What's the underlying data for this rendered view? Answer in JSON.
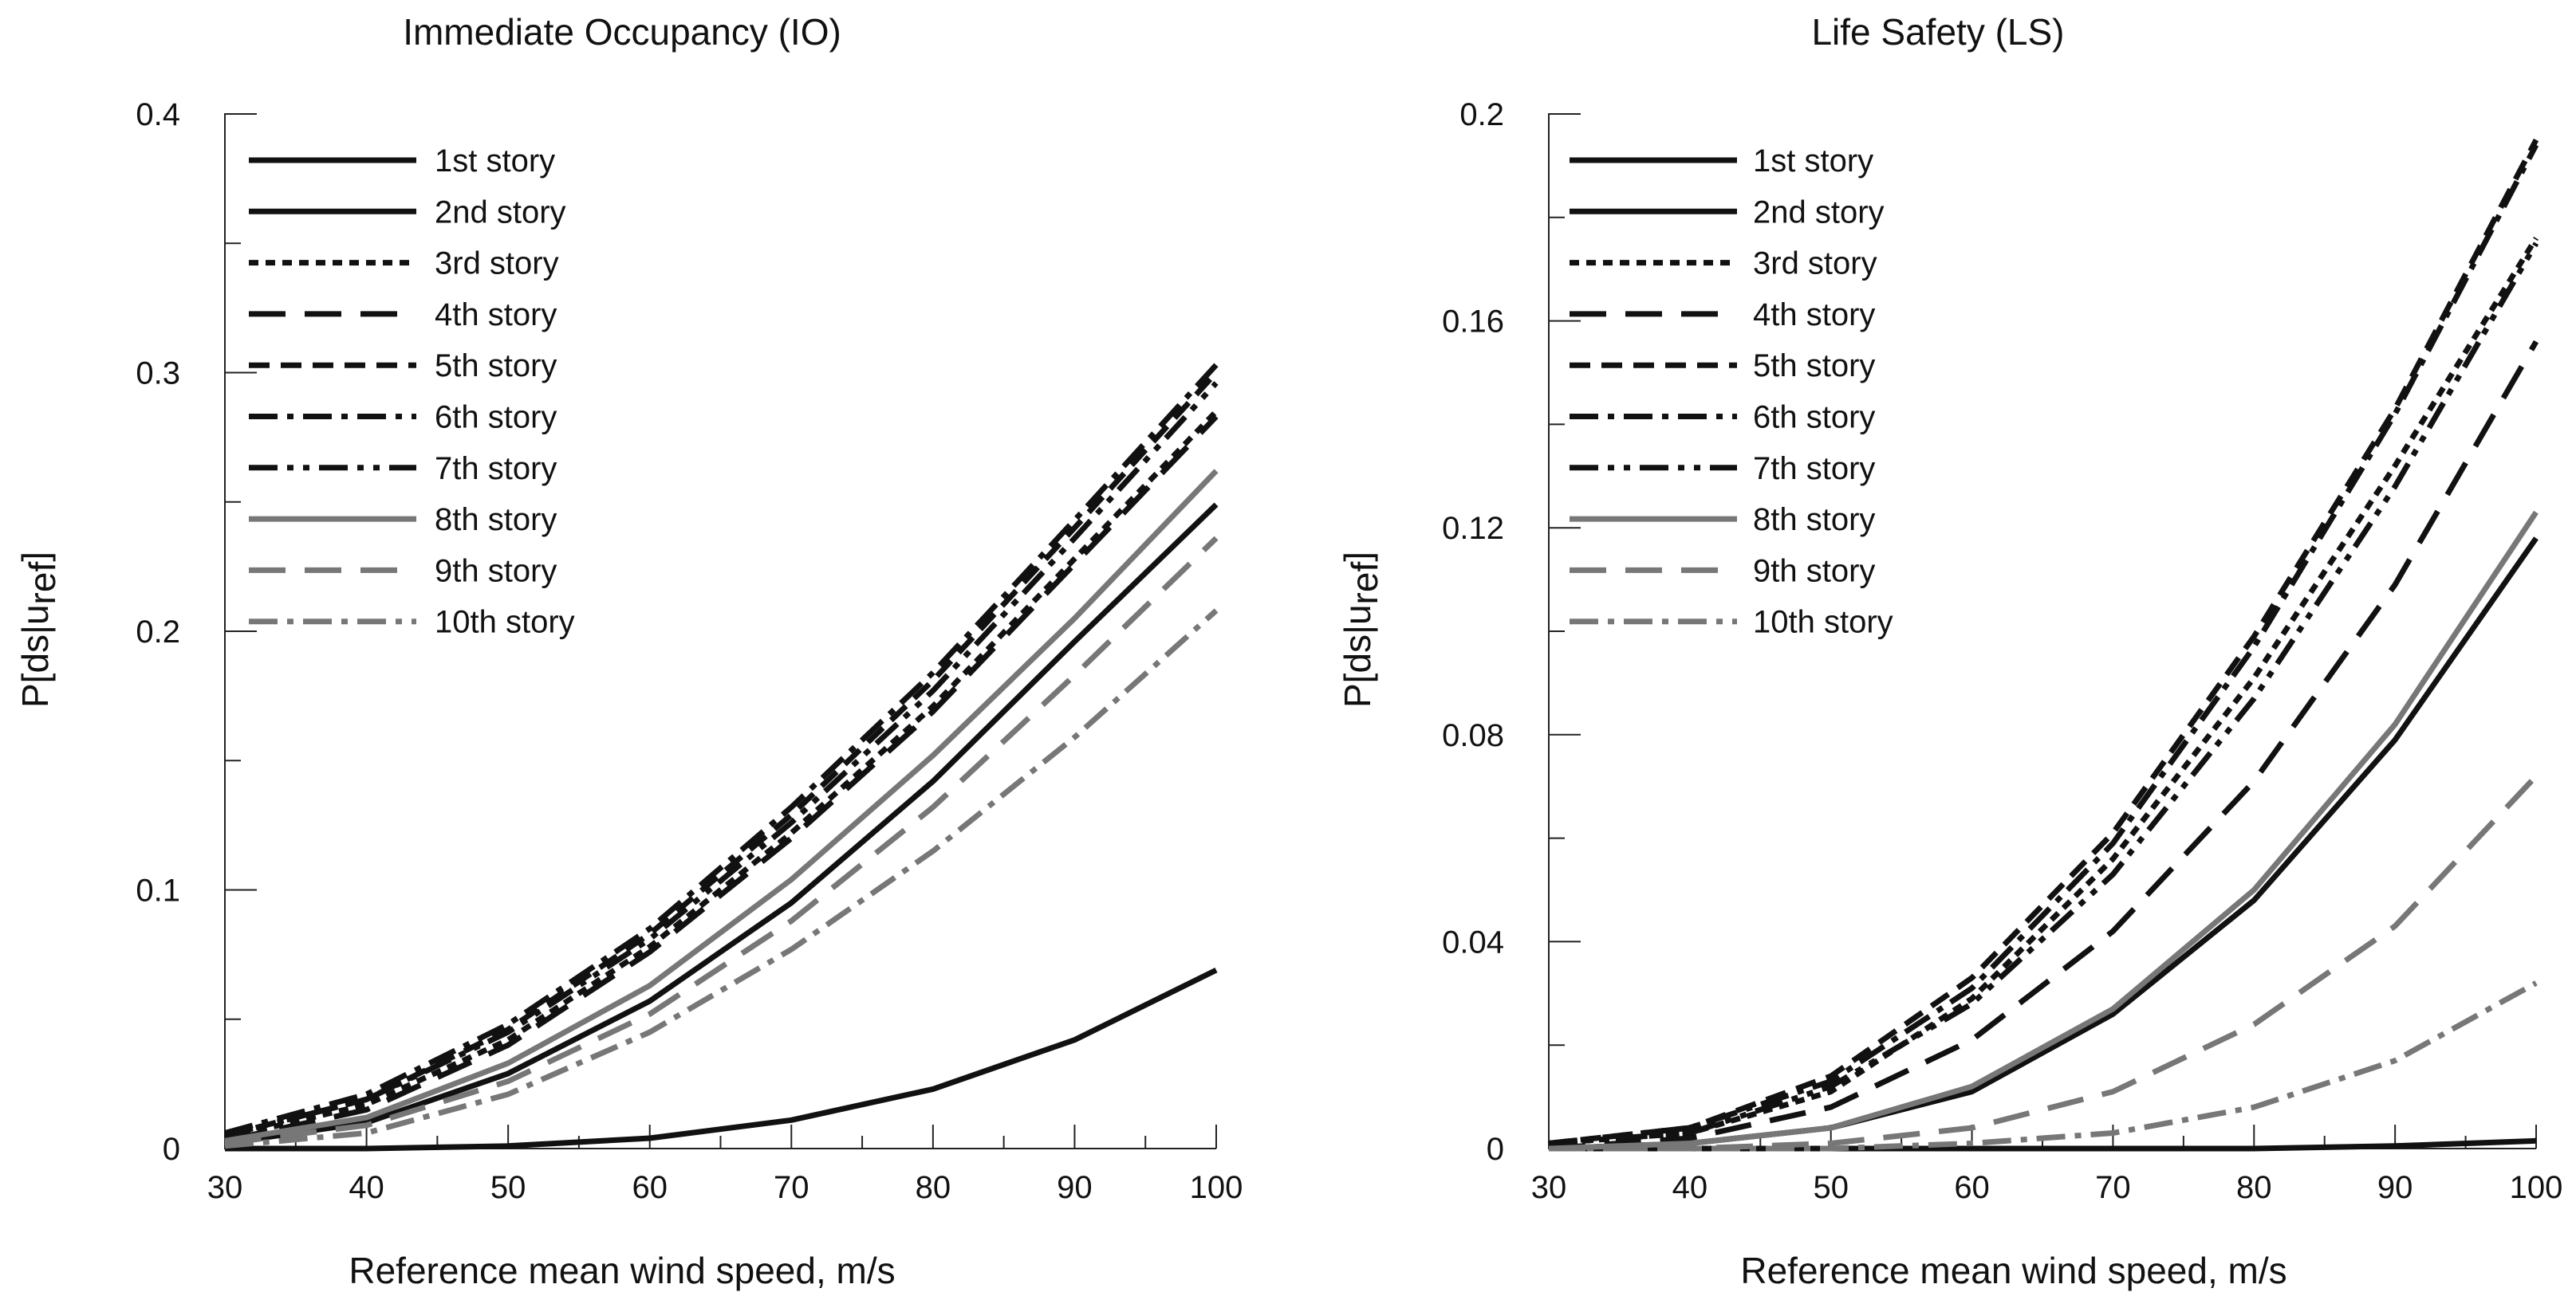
{
  "chart_data": [
    {
      "type": "line",
      "title": "Immediate Occupancy (IO)",
      "xlabel": "Reference mean wind speed, m/s",
      "ylabel": "P[ds|u",
      "ylabel_sub": "ref",
      "ylabel_close": "]",
      "xlim": [
        30,
        100
      ],
      "ylim": [
        0,
        0.4
      ],
      "xticks": [
        30,
        40,
        50,
        60,
        70,
        80,
        90,
        100
      ],
      "yticks": [
        0,
        0.1,
        0.2,
        0.3,
        0.4
      ],
      "ytick_labels": [
        "0",
        "0.1",
        "0.2",
        "0.3",
        "0.4"
      ],
      "x": [
        30,
        40,
        50,
        60,
        70,
        80,
        90,
        100
      ],
      "legend_position": "top-left",
      "series": [
        {
          "name": "1st story",
          "color": "#111111",
          "dash": "solid",
          "values": [
            0,
            0,
            0.001,
            0.004,
            0.011,
            0.023,
            0.042,
            0.069
          ]
        },
        {
          "name": "2nd story",
          "color": "#111111",
          "dash": "solid",
          "values": [
            0.002,
            0.01,
            0.029,
            0.057,
            0.095,
            0.142,
            0.196,
            0.249
          ]
        },
        {
          "name": "3rd story",
          "color": "#111111",
          "dash": "dot",
          "values": [
            0.004,
            0.017,
            0.042,
            0.078,
            0.122,
            0.171,
            0.228,
            0.285
          ]
        },
        {
          "name": "4th story",
          "color": "#111111",
          "dash": "longdash",
          "values": [
            0.003,
            0.015,
            0.04,
            0.076,
            0.12,
            0.169,
            0.226,
            0.283
          ]
        },
        {
          "name": "5th story",
          "color": "#111111",
          "dash": "dash",
          "values": [
            0.005,
            0.019,
            0.046,
            0.083,
            0.129,
            0.181,
            0.24,
            0.3
          ]
        },
        {
          "name": "6th story",
          "color": "#111111",
          "dash": "dashdot",
          "values": [
            0.006,
            0.021,
            0.048,
            0.085,
            0.132,
            0.184,
            0.243,
            0.303
          ]
        },
        {
          "name": "7th story",
          "color": "#111111",
          "dash": "dashdotdot",
          "values": [
            0.005,
            0.019,
            0.045,
            0.081,
            0.126,
            0.177,
            0.236,
            0.296
          ]
        },
        {
          "name": "8th story",
          "color": "#777777",
          "dash": "solid",
          "values": [
            0.003,
            0.012,
            0.033,
            0.063,
            0.104,
            0.152,
            0.205,
            0.262
          ]
        },
        {
          "name": "9th story",
          "color": "#777777",
          "dash": "longdash",
          "values": [
            0.002,
            0.009,
            0.026,
            0.052,
            0.088,
            0.132,
            0.183,
            0.236
          ]
        },
        {
          "name": "10th story",
          "color": "#777777",
          "dash": "dashdot",
          "values": [
            0.001,
            0.006,
            0.021,
            0.045,
            0.077,
            0.115,
            0.159,
            0.208
          ]
        }
      ]
    },
    {
      "type": "line",
      "title": "Life Safety (LS)",
      "xlabel": "Reference mean wind speed, m/s",
      "ylabel": "P[ds|u",
      "ylabel_sub": "ref",
      "ylabel_close": "]",
      "xlim": [
        30,
        100
      ],
      "ylim": [
        0,
        0.2
      ],
      "xticks": [
        30,
        40,
        50,
        60,
        70,
        80,
        90,
        100
      ],
      "yticks": [
        0,
        0.04,
        0.08,
        0.12,
        0.16,
        0.2
      ],
      "ytick_labels": [
        "0",
        "0.04",
        "0.08",
        "0.12",
        "0.16",
        "0.2"
      ],
      "x": [
        30,
        40,
        50,
        60,
        70,
        80,
        90,
        100
      ],
      "legend_position": "top-left",
      "series": [
        {
          "name": "1st story",
          "color": "#111111",
          "dash": "solid",
          "values": [
            0,
            0,
            0,
            0,
            0,
            0,
            0.0005,
            0.0015
          ]
        },
        {
          "name": "2nd story",
          "color": "#111111",
          "dash": "solid",
          "values": [
            0,
            0.001,
            0.004,
            0.011,
            0.026,
            0.048,
            0.079,
            0.118
          ]
        },
        {
          "name": "3rd story",
          "color": "#111111",
          "dash": "dot",
          "values": [
            0.001,
            0.003,
            0.011,
            0.029,
            0.056,
            0.091,
            0.132,
            0.176
          ]
        },
        {
          "name": "4th story",
          "color": "#111111",
          "dash": "longdash",
          "values": [
            0,
            0.002,
            0.008,
            0.021,
            0.042,
            0.071,
            0.109,
            0.156
          ]
        },
        {
          "name": "5th story",
          "color": "#111111",
          "dash": "dash",
          "values": [
            0.001,
            0.004,
            0.014,
            0.033,
            0.061,
            0.099,
            0.143,
            0.195
          ]
        },
        {
          "name": "6th story",
          "color": "#111111",
          "dash": "dashdot",
          "values": [
            0.001,
            0.004,
            0.013,
            0.031,
            0.059,
            0.097,
            0.142,
            0.194
          ]
        },
        {
          "name": "7th story",
          "color": "#111111",
          "dash": "dashdotdot",
          "values": [
            0.001,
            0.003,
            0.012,
            0.028,
            0.053,
            0.087,
            0.128,
            0.175
          ]
        },
        {
          "name": "8th story",
          "color": "#777777",
          "dash": "solid",
          "values": [
            0,
            0.001,
            0.004,
            0.012,
            0.027,
            0.05,
            0.082,
            0.123
          ]
        },
        {
          "name": "9th story",
          "color": "#777777",
          "dash": "longdash",
          "values": [
            0,
            0,
            0.001,
            0.004,
            0.011,
            0.024,
            0.043,
            0.072
          ]
        },
        {
          "name": "10th story",
          "color": "#777777",
          "dash": "dashdot",
          "values": [
            0,
            0,
            0,
            0.001,
            0.003,
            0.008,
            0.017,
            0.032
          ]
        }
      ]
    }
  ]
}
